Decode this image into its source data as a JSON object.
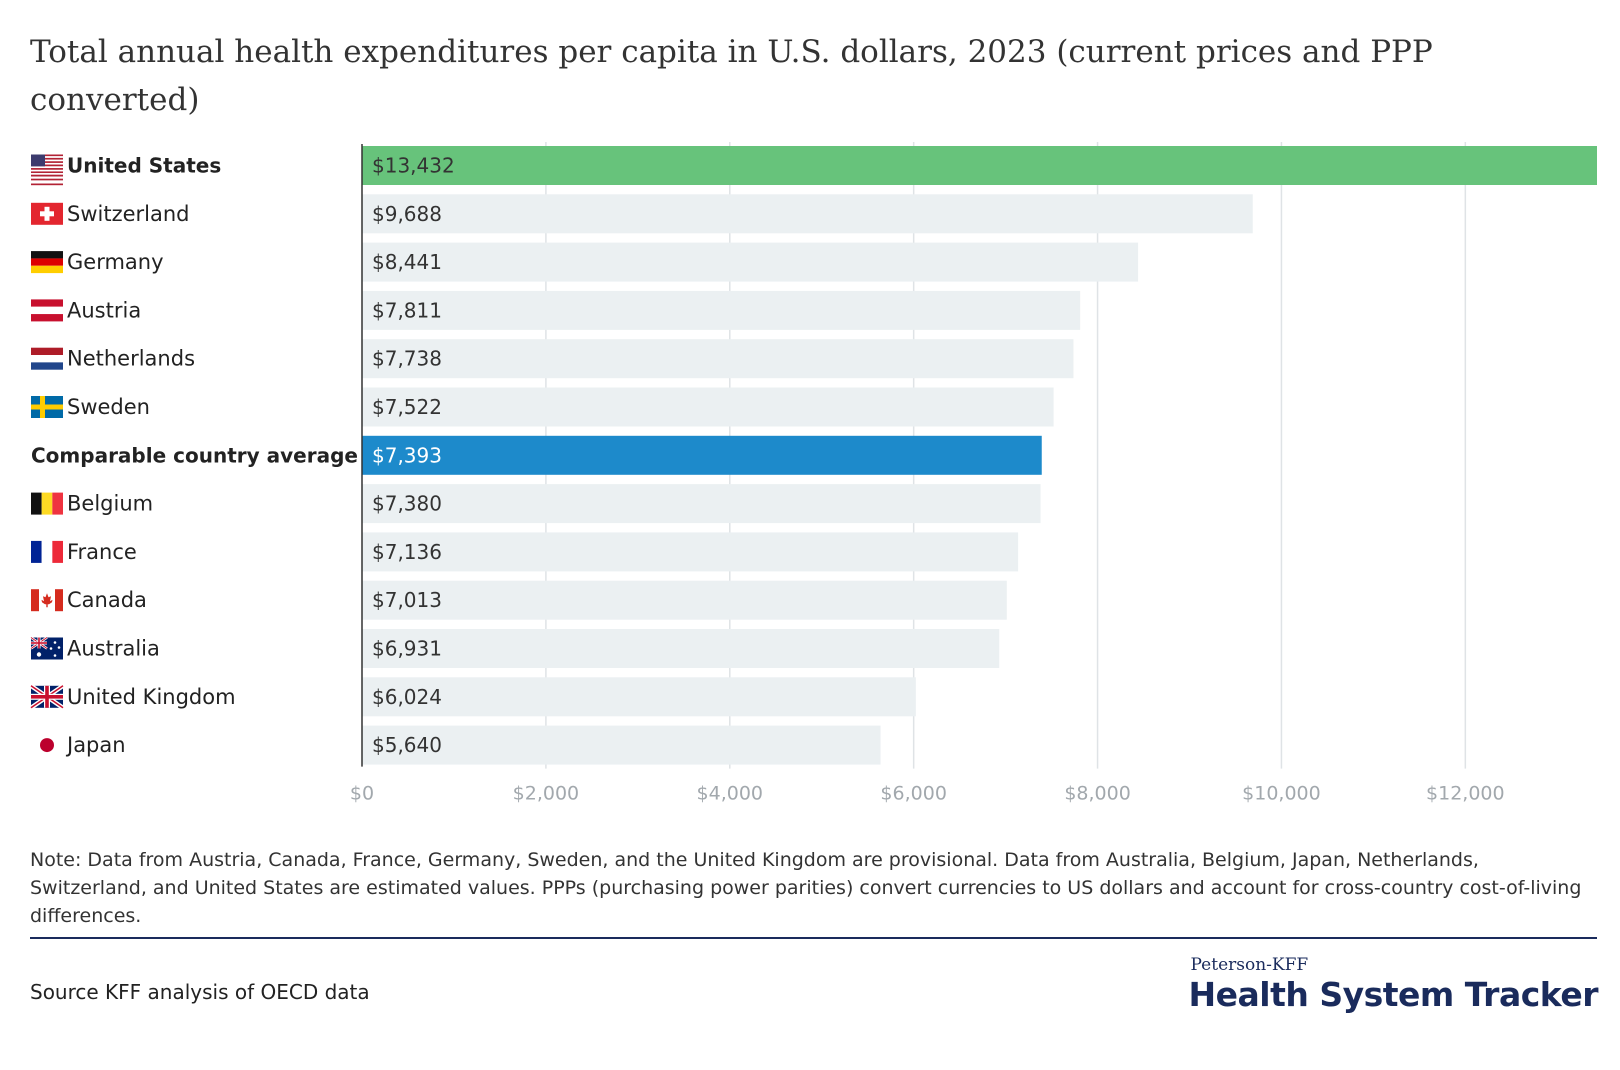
{
  "chart_data": {
    "type": "bar",
    "orientation": "horizontal",
    "title": "Total annual health expenditures per capita in U.S. dollars, 2023 (current prices and PPP converted)",
    "categories": [
      "United States",
      "Switzerland",
      "Germany",
      "Austria",
      "Netherlands",
      "Sweden",
      "Comparable country average",
      "Belgium",
      "France",
      "Canada",
      "Australia",
      "United Kingdom",
      "Japan"
    ],
    "values": [
      13432,
      9688,
      8441,
      7811,
      7738,
      7522,
      7393,
      7380,
      7136,
      7013,
      6931,
      6024,
      5640
    ],
    "value_labels": [
      "$13,432",
      "$9,688",
      "$8,441",
      "$7,811",
      "$7,738",
      "$7,522",
      "$7,393",
      "$7,380",
      "$7,136",
      "$7,013",
      "$6,931",
      "$6,024",
      "$5,640"
    ],
    "flags": [
      "us-flag-icon",
      "swiss-flag-icon",
      "german-flag-icon",
      "austrian-flag-icon",
      "dutch-flag-icon",
      "swedish-flag-icon",
      "",
      "belgian-flag-icon",
      "french-flag-icon",
      "canadian-flag-icon",
      "australian-flag-icon",
      "uk-flag-icon",
      "japanese-flag-icon"
    ],
    "bold_categories": [
      "United States",
      "Comparable country average"
    ],
    "xlim": [
      0,
      13432
    ],
    "xticks": [
      0,
      2000,
      4000,
      6000,
      8000,
      10000,
      12000
    ],
    "xtick_labels": [
      "$0",
      "$2,000",
      "$4,000",
      "$6,000",
      "$8,000",
      "$10,000",
      "$12,000"
    ],
    "xlabel": "",
    "ylabel": "",
    "grid": true,
    "colors": {
      "highlight_us": "#67c37b",
      "highlight_average": "#1d8acb",
      "default_bar": "#ebf0f2",
      "gridline": "#dfe3e6",
      "axis": "#333333",
      "tick_text": "#a2a8ad"
    }
  },
  "note": "Note: Data from Austria, Canada, France, Germany, Sweden, and the United Kingdom are provisional. Data from Australia, Belgium, Japan, Netherlands, Switzerland, and United States are estimated values. PPPs (purchasing power parities) convert currencies to US dollars and account for cross-country cost-of-living differences.",
  "source": "Source KFF analysis of OECD data",
  "brand": {
    "small": "Peterson-KFF",
    "large": "Health System Tracker"
  }
}
